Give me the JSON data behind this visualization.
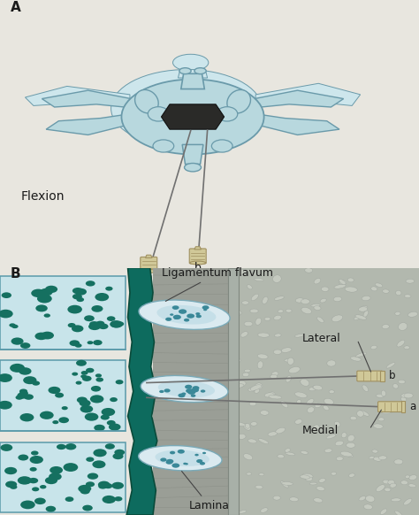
{
  "bg_color": "#e8e6df",
  "label_A": "A",
  "label_B": "B",
  "flexion_text": "Flexion",
  "label_a_lower": "a",
  "label_b_lower": "b",
  "ligamentum_text": "Ligamentum flavum",
  "lateral_text": "Lateral",
  "medial_text": "Medial",
  "lamina_text": "Lamina",
  "vertebra_color": "#b8d8de",
  "vertebra_outline": "#6a9aaa",
  "spinal_canal_color": "#2a2a2a",
  "teal_dark": "#0d6b5e",
  "teal_mid": "#1a8070",
  "bone_light": "#d5e8ec",
  "dot_teal": "#157060",
  "gray_tissue": "#9ea89a",
  "gray_mid": "#b5b8b0",
  "gray_light": "#c8cbc3",
  "needle_color": "#707070",
  "hub_color_light": "#d0c898",
  "hub_color_dark": "#a09060",
  "text_color": "#1a1a1a",
  "line_color": "#444444"
}
